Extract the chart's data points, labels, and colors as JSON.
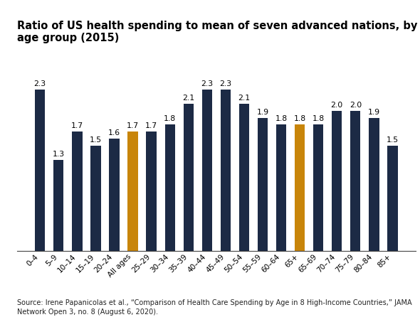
{
  "categories": [
    "0–4",
    "5–9",
    "10–14",
    "15–19",
    "20–24",
    "All ages",
    "25–29",
    "30–34",
    "35–39",
    "40–44",
    "45–49",
    "50–54",
    "55–59",
    "60–64",
    "65+",
    "65–69",
    "70–74",
    "75–79",
    "80–84",
    "85+"
  ],
  "values": [
    2.3,
    1.3,
    1.7,
    1.5,
    1.6,
    1.7,
    1.7,
    1.8,
    2.1,
    2.3,
    2.3,
    2.1,
    1.9,
    1.8,
    1.8,
    1.8,
    2.0,
    2.0,
    1.9,
    1.5
  ],
  "bar_colors": [
    "#1c2a45",
    "#1c2a45",
    "#1c2a45",
    "#1c2a45",
    "#1c2a45",
    "#c8850a",
    "#1c2a45",
    "#1c2a45",
    "#1c2a45",
    "#1c2a45",
    "#1c2a45",
    "#1c2a45",
    "#1c2a45",
    "#1c2a45",
    "#c8850a",
    "#1c2a45",
    "#1c2a45",
    "#1c2a45",
    "#1c2a45",
    "#1c2a45"
  ],
  "title": "Ratio of US health spending to mean of seven advanced nations, by age group (2015)",
  "ylim": [
    0,
    2.75
  ],
  "title_fontsize": 10.5,
  "label_fontsize": 7.8,
  "tick_fontsize": 7.5,
  "bar_width": 0.55,
  "source_text": "Source: Irene Papanicolas et al., “Comparison of Health Care Spending by Age in 8 High-Income Countries,” JAMA\nNetwork Open 3, no. 8 (August 6, 2020).",
  "background_color": "#ffffff"
}
